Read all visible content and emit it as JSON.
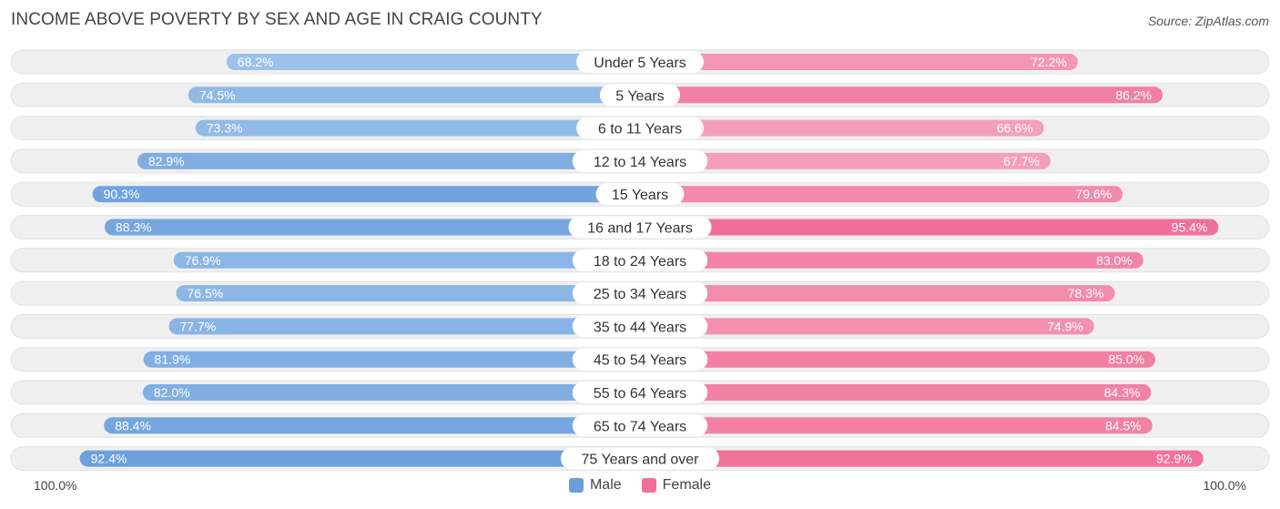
{
  "header": {
    "title": "INCOME ABOVE POVERTY BY SEX AND AGE IN CRAIG COUNTY",
    "source": "Source: ZipAtlas.com"
  },
  "axis": {
    "left_label": "100.0%",
    "right_label": "100.0%"
  },
  "legend": {
    "male_label": "Male",
    "female_label": "Female"
  },
  "colors": {
    "male_light": "#a8c9ee",
    "male_dark": "#6a9fdc",
    "female_light": "#f6a8c0",
    "female_dark": "#f0709a",
    "track": "#efefef"
  },
  "chart_data": {
    "type": "bar",
    "orientation": "horizontal-diverging",
    "title": "INCOME ABOVE POVERTY BY SEX AND AGE IN CRAIG COUNTY",
    "categories": [
      "Under 5 Years",
      "5 Years",
      "6 to 11 Years",
      "12 to 14 Years",
      "15 Years",
      "16 and 17 Years",
      "18 to 24 Years",
      "25 to 34 Years",
      "35 to 44 Years",
      "45 to 54 Years",
      "55 to 64 Years",
      "65 to 74 Years",
      "75 Years and over"
    ],
    "series": [
      {
        "name": "Male",
        "values": [
          68.2,
          74.5,
          73.3,
          82.9,
          90.3,
          88.3,
          76.9,
          76.5,
          77.7,
          81.9,
          82.0,
          88.4,
          92.4
        ],
        "labels": [
          "68.2%",
          "74.5%",
          "73.3%",
          "82.9%",
          "90.3%",
          "88.3%",
          "76.9%",
          "76.5%",
          "77.7%",
          "81.9%",
          "82.0%",
          "88.4%",
          "92.4%"
        ]
      },
      {
        "name": "Female",
        "values": [
          72.2,
          86.2,
          66.6,
          67.7,
          79.6,
          95.4,
          83.0,
          78.3,
          74.9,
          85.0,
          84.3,
          84.5,
          92.9
        ],
        "labels": [
          "72.2%",
          "86.2%",
          "66.6%",
          "67.7%",
          "79.6%",
          "95.4%",
          "83.0%",
          "78.3%",
          "74.9%",
          "85.0%",
          "84.3%",
          "84.5%",
          "92.9%"
        ]
      }
    ],
    "xlim": [
      0,
      100
    ],
    "legend_position": "bottom-center"
  }
}
